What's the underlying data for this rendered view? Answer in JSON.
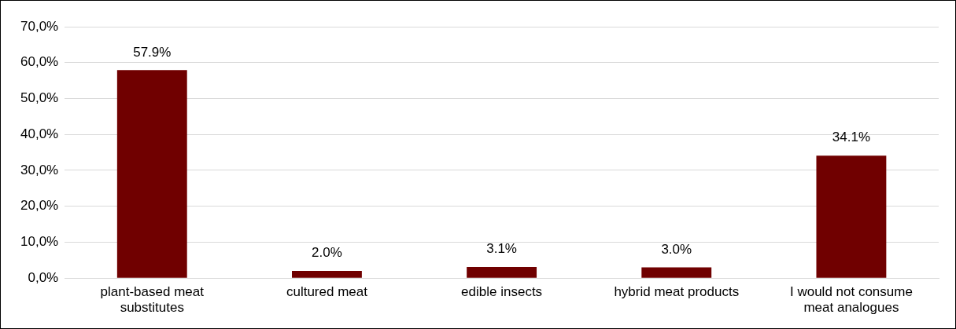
{
  "chart_data": {
    "type": "bar",
    "categories": [
      "plant-based meat substitutes",
      "cultured meat",
      "edible insects",
      "hybrid meat products",
      "I would not consume meat analogues"
    ],
    "values": [
      57.9,
      2.0,
      3.1,
      3.0,
      34.1
    ],
    "color": "#700000",
    "value_labels": [
      "57.9%",
      "2.0%",
      "3.1%",
      "3.0%",
      "34.1%"
    ],
    "ylim": [
      0,
      70
    ],
    "yticks": [
      {
        "value": 0,
        "label": "0,0%"
      },
      {
        "value": 10,
        "label": "10,0%"
      },
      {
        "value": 20,
        "label": "20,0%"
      },
      {
        "value": 30,
        "label": "30,0%"
      },
      {
        "value": 40,
        "label": "40,0%"
      },
      {
        "value": 50,
        "label": "50,0%"
      },
      {
        "value": 60,
        "label": "60,0%"
      },
      {
        "value": 70,
        "label": "70,0%"
      }
    ],
    "grid": "y",
    "legend": false
  }
}
